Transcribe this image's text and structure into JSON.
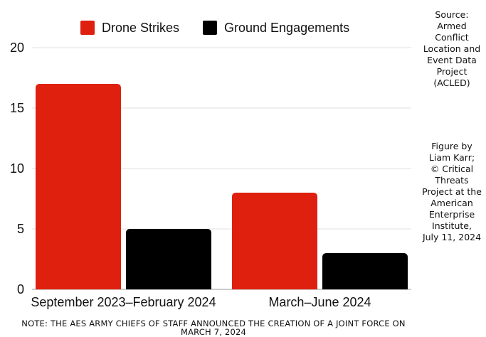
{
  "chart_data": {
    "type": "bar",
    "categories": [
      "September 2023–February 2024",
      "March–June 2024"
    ],
    "series": [
      {
        "name": "Drone Strikes",
        "values": [
          17,
          8
        ],
        "color": "#e0200f"
      },
      {
        "name": "Ground Engagements",
        "values": [
          5,
          3
        ],
        "color": "#000000"
      }
    ],
    "ylim": [
      0,
      20
    ],
    "yticks": [
      0,
      5,
      10,
      15,
      20
    ],
    "grid": true,
    "legend_position": "top"
  },
  "source_note": "Source:\nArmed\nConflict\nLocation and\nEvent Data\nProject\n(ACLED)",
  "credit_note": "Figure by\nLiam Karr;\n© Critical\nThreats\nProject at the\nAmerican\nEnterprise\nInstitute,\nJuly 11, 2024",
  "footnote": "NOTE: THE AES ARMY CHIEFS OF STAFF ANNOUNCED THE CREATION OF A JOINT FORCE ON MARCH 7, 2024"
}
